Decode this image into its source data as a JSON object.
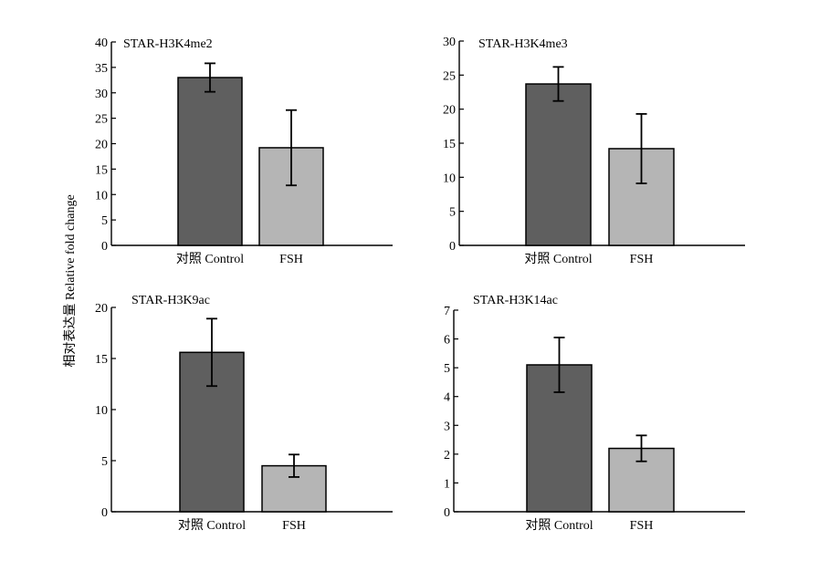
{
  "figure": {
    "shared_ylabel": "相对表达量 Relative fold change"
  },
  "chart_data": [
    {
      "type": "bar",
      "title": "STAR-H3K4me2",
      "categories": [
        "对照 Control",
        "FSH"
      ],
      "values": [
        33.0,
        19.2
      ],
      "error": [
        2.8,
        7.4
      ],
      "ylim": [
        0,
        40
      ],
      "yticks": [
        0,
        5,
        10,
        15,
        20,
        25,
        30,
        35,
        40
      ],
      "colors": [
        "#5f5f5f",
        "#b5b5b5"
      ]
    },
    {
      "type": "bar",
      "title": "STAR-H3K4me3",
      "categories": [
        "对照 Control",
        "FSH"
      ],
      "values": [
        23.7,
        14.2
      ],
      "error": [
        2.5,
        5.1
      ],
      "ylim": [
        0,
        30
      ],
      "yticks": [
        0,
        5,
        10,
        15,
        20,
        25,
        30
      ],
      "colors": [
        "#5f5f5f",
        "#b5b5b5"
      ]
    },
    {
      "type": "bar",
      "title": "STAR-H3K9ac",
      "categories": [
        "对照 Control",
        "FSH"
      ],
      "values": [
        15.6,
        4.5
      ],
      "error": [
        3.3,
        1.1
      ],
      "ylim": [
        0,
        20
      ],
      "yticks": [
        0,
        5,
        10,
        15,
        20
      ],
      "colors": [
        "#5f5f5f",
        "#b5b5b5"
      ]
    },
    {
      "type": "bar",
      "title": "STAR-H3K14ac",
      "categories": [
        "对照 Control",
        "FSH"
      ],
      "values": [
        5.1,
        2.2
      ],
      "error": [
        0.95,
        0.45
      ],
      "ylim": [
        0,
        7
      ],
      "yticks": [
        0,
        1,
        2,
        3,
        4,
        5,
        6,
        7
      ],
      "colors": [
        "#5f5f5f",
        "#b5b5b5"
      ]
    }
  ]
}
